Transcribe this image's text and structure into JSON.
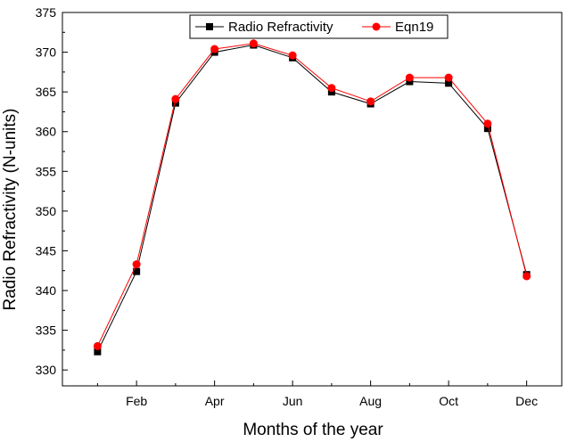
{
  "chart_data": {
    "type": "line",
    "title": "",
    "xlabel": "Months of the year",
    "ylabel": "Radio Refractivity (N-units)",
    "x": [
      1,
      2,
      3,
      4,
      5,
      6,
      7,
      8,
      9,
      10,
      11,
      12
    ],
    "xlim": [
      0.1,
      12.9
    ],
    "ylim": [
      328,
      375
    ],
    "yticks": [
      330,
      335,
      340,
      345,
      350,
      355,
      360,
      365,
      370,
      375
    ],
    "xticks": [
      {
        "x": 2,
        "label": "Feb"
      },
      {
        "x": 4,
        "label": "Apr"
      },
      {
        "x": 6,
        "label": "Jun"
      },
      {
        "x": 8,
        "label": "Aug"
      },
      {
        "x": 10,
        "label": "Oct"
      },
      {
        "x": 12,
        "label": "Dec"
      }
    ],
    "x_minor_ticks": [
      1,
      3,
      5,
      7,
      9,
      11
    ],
    "grid": false,
    "legend_position": "top-right",
    "series": [
      {
        "name": "Radio Refractivity",
        "color": "#000000",
        "marker": "square",
        "values": [
          332.3,
          342.4,
          363.6,
          370.0,
          370.9,
          369.3,
          365.0,
          363.5,
          366.3,
          366.1,
          360.4,
          342.0
        ]
      },
      {
        "name": "Eqn19",
        "color": "#ff0000",
        "marker": "circle",
        "values": [
          333.0,
          343.3,
          364.1,
          370.4,
          371.1,
          369.6,
          365.5,
          363.8,
          366.8,
          366.8,
          361.0,
          341.8
        ]
      }
    ]
  }
}
